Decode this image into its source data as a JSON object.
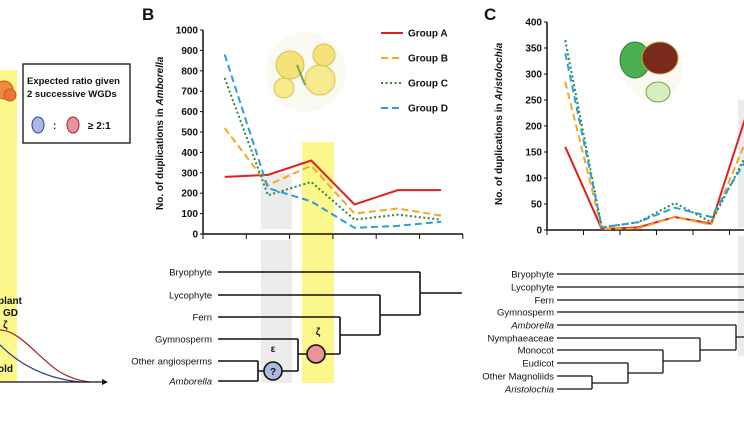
{
  "panel_a": {
    "legend_title_line1": "Expected ratio given",
    "legend_title_line2": "2 successive WGDs",
    "legend_colon": ":",
    "legend_ratio": "≥ 2:1",
    "text_plant": "plant",
    "text_gd": "GD",
    "text_zeta": "ζ",
    "text_old": "old",
    "colors": {
      "band": "#fbf78a",
      "blue": "#aab9df",
      "red": "#e8949a"
    }
  },
  "panel_b": {
    "label": "B",
    "tree": {
      "taxa": [
        "Bryophyte",
        "Lycophyte",
        "Fern",
        "Gymnosperm",
        "Other angiosperms",
        "Amborella"
      ],
      "epsilon": "ε",
      "zeta": "ζ",
      "question": "?"
    }
  },
  "panel_c": {
    "label": "C",
    "tree": {
      "taxa": [
        "Bryophyte",
        "Lycophyte",
        "Fern",
        "Gymnosperm",
        "Amborella",
        "Nymphaeaceae",
        "Monocot",
        "Eudicot",
        "Other Magnoliids",
        "Aristolochia"
      ]
    }
  },
  "chart_data": [
    {
      "type": "line",
      "ylabel_prefix": "No. of duplications in ",
      "ylabel_italic": "Amborella",
      "ylim": [
        0,
        1000
      ],
      "yticks": [
        "0",
        "100",
        "200",
        "300",
        "400",
        "500",
        "600",
        "700",
        "800",
        "900",
        "1000"
      ],
      "legend_position": "top-right",
      "series": [
        {
          "name": "Group A",
          "color": "#e02020",
          "style": "solid",
          "values": [
            280,
            290,
            360,
            145,
            215,
            215
          ]
        },
        {
          "name": "Group B",
          "color": "#f5a623",
          "style": "dashed",
          "values": [
            520,
            240,
            335,
            100,
            125,
            90
          ]
        },
        {
          "name": "Group C",
          "color": "#2a8a3a",
          "style": "dotted",
          "values": [
            765,
            190,
            255,
            70,
            95,
            70
          ]
        },
        {
          "name": "Group D",
          "color": "#2a9fd8",
          "style": "dashed",
          "values": [
            880,
            225,
            160,
            30,
            40,
            60
          ]
        }
      ]
    },
    {
      "type": "line",
      "ylabel_prefix": "No. of duplications in ",
      "ylabel_italic": "Aristolochia",
      "ylim": [
        0,
        400
      ],
      "yticks": [
        "0",
        "50",
        "100",
        "150",
        "200",
        "250",
        "300",
        "350",
        "400"
      ],
      "series": [
        {
          "color": "#e02020",
          "style": "solid",
          "values": [
            160,
            2,
            5,
            25,
            12,
            230
          ]
        },
        {
          "color": "#f5a623",
          "style": "dashed",
          "values": [
            285,
            2,
            3,
            25,
            10,
            180
          ]
        },
        {
          "color": "#2a8a3a",
          "style": "dotted",
          "values": [
            365,
            5,
            15,
            52,
            15,
            150
          ]
        },
        {
          "color": "#2a9fd8",
          "style": "dashed",
          "values": [
            340,
            5,
            15,
            43,
            25,
            140
          ]
        }
      ]
    }
  ]
}
